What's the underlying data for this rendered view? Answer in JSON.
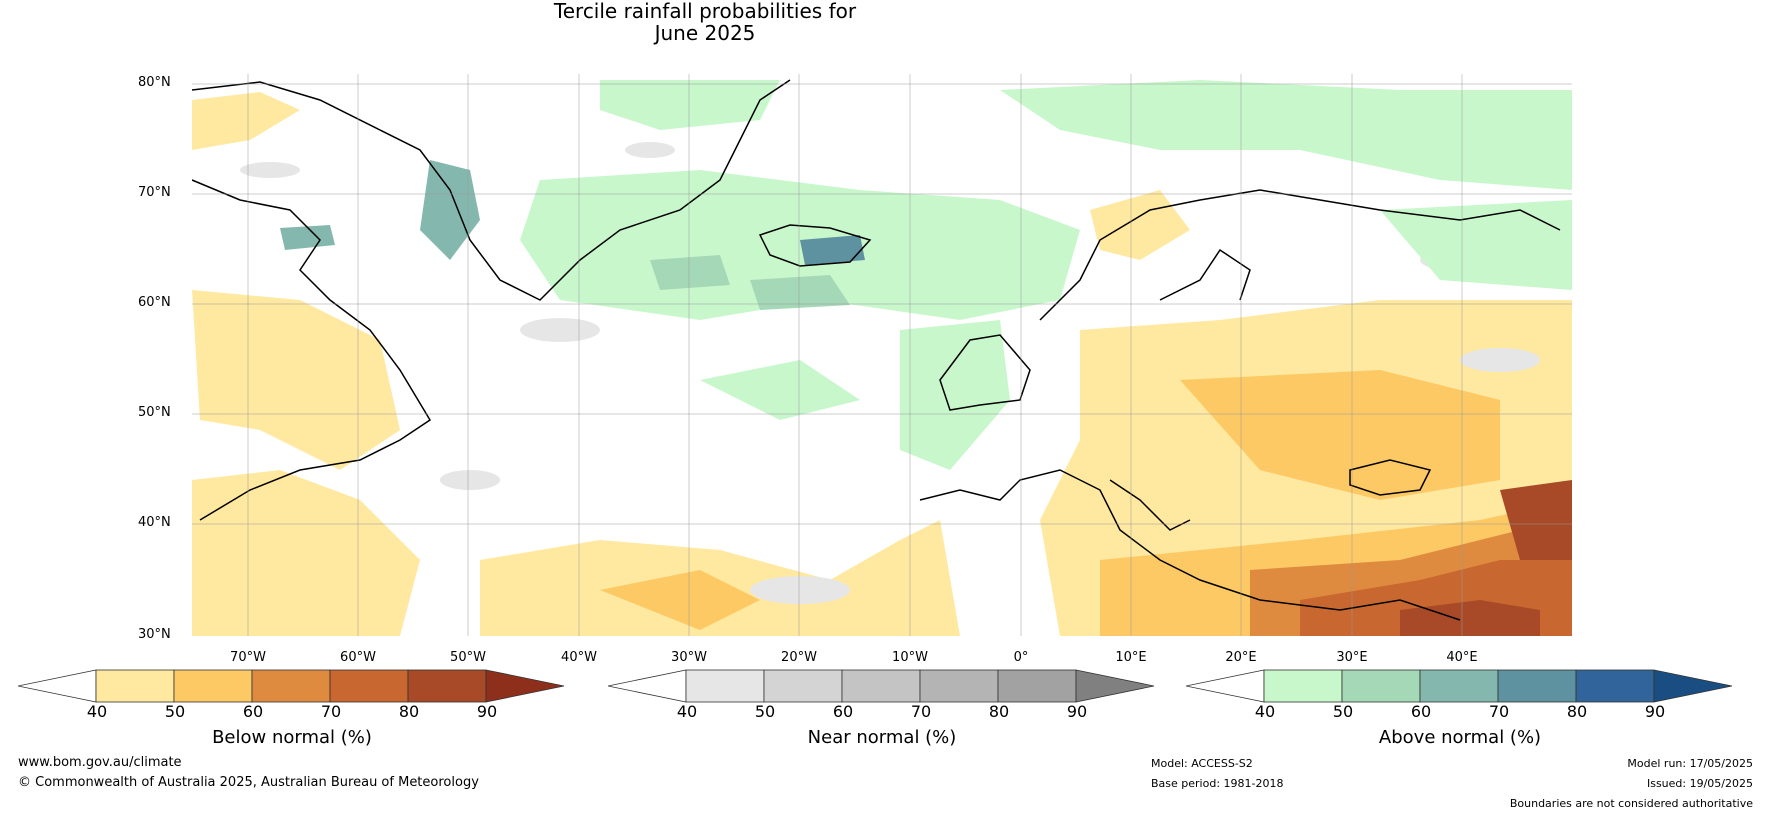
{
  "title": {
    "line1": "Tercile rainfall probabilities for",
    "line2": "June 2025"
  },
  "map": {
    "lat_labels": [
      "80°N",
      "70°N",
      "60°N",
      "50°N",
      "40°N",
      "30°N"
    ],
    "lon_labels": [
      "70°W",
      "60°W",
      "50°W",
      "40°W",
      "30°W",
      "20°W",
      "10°W",
      "0°",
      "10°E",
      "20°E",
      "30°E",
      "40°E"
    ]
  },
  "colorbars": {
    "below": {
      "title": "Below normal (%)",
      "ticks": [
        "40",
        "50",
        "60",
        "70",
        "80",
        "90"
      ],
      "colors": [
        "#ffffff",
        "#ffe8a0",
        "#fcc964",
        "#de8b40",
        "#c86830",
        "#a84a28",
        "#8e2f1c"
      ]
    },
    "near": {
      "title": "Near normal (%)",
      "ticks": [
        "40",
        "50",
        "60",
        "70",
        "80",
        "90"
      ],
      "colors": [
        "#ffffff",
        "#e6e6e6",
        "#d4d4d4",
        "#c4c4c4",
        "#b4b4b4",
        "#a2a2a2",
        "#808080"
      ]
    },
    "above": {
      "title": "Above normal (%)",
      "ticks": [
        "40",
        "50",
        "60",
        "70",
        "80",
        "90"
      ],
      "colors": [
        "#ffffff",
        "#c8f7cc",
        "#a4d8b6",
        "#84b8ae",
        "#5e92a0",
        "#30649a",
        "#1a4e82"
      ]
    }
  },
  "footer": {
    "website": "www.bom.gov.au/climate",
    "copyright": "© Commonwealth of Australia 2025, Australian Bureau of Meteorology",
    "model": "Model: ACCESS-S2",
    "base_period": "Base period: 1981-2018",
    "model_run": "Model run: 17/05/2025",
    "issued": "Issued: 19/05/2025",
    "disclaimer": "Boundaries are not considered authoritative"
  }
}
